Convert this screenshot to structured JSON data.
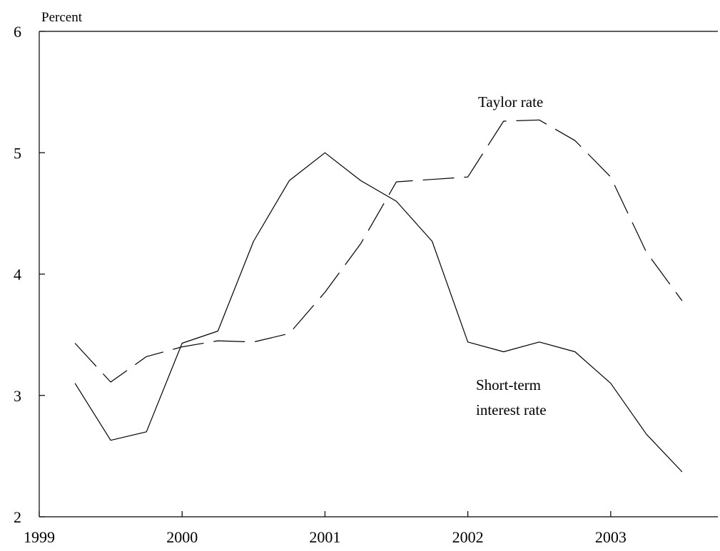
{
  "chart_data": {
    "type": "line",
    "ylabel": "Percent",
    "xlim": [
      1999,
      2003.75
    ],
    "ylim": [
      2,
      6
    ],
    "xticks": [
      1999,
      2000,
      2001,
      2002,
      2003
    ],
    "yticks": [
      2,
      3,
      4,
      5,
      6
    ],
    "grid": false,
    "series": [
      {
        "name": "Short-term interest rate",
        "style": "solid",
        "x": [
          1999.25,
          1999.5,
          1999.75,
          2000.0,
          2000.25,
          2000.5,
          2000.75,
          2001.0,
          2001.25,
          2001.5,
          2001.75,
          2002.0,
          2002.25,
          2002.5,
          2002.75,
          2003.0,
          2003.25,
          2003.5
        ],
        "values": [
          3.1,
          2.63,
          2.7,
          3.43,
          3.53,
          4.27,
          4.77,
          5.0,
          4.77,
          4.6,
          4.27,
          3.44,
          3.36,
          3.44,
          3.36,
          3.1,
          2.68,
          2.37
        ]
      },
      {
        "name": "Taylor rate",
        "style": "dashed",
        "x": [
          1999.25,
          1999.5,
          1999.75,
          2000.0,
          2000.25,
          2000.5,
          2000.75,
          2001.0,
          2001.25,
          2001.5,
          2001.75,
          2002.0,
          2002.25,
          2002.5,
          2002.75,
          2003.0,
          2003.25,
          2003.5
        ],
        "values": [
          3.43,
          3.11,
          3.32,
          3.4,
          3.45,
          3.44,
          3.51,
          3.85,
          4.25,
          4.76,
          4.78,
          4.8,
          5.26,
          5.27,
          5.1,
          4.8,
          4.18,
          3.78
        ]
      }
    ],
    "annotations": [
      {
        "text": "Taylor rate",
        "x": 2001.0,
        "y": 5.0
      },
      {
        "text": "Short-term interest rate",
        "x": 2002.75,
        "y": 3.0
      }
    ]
  }
}
